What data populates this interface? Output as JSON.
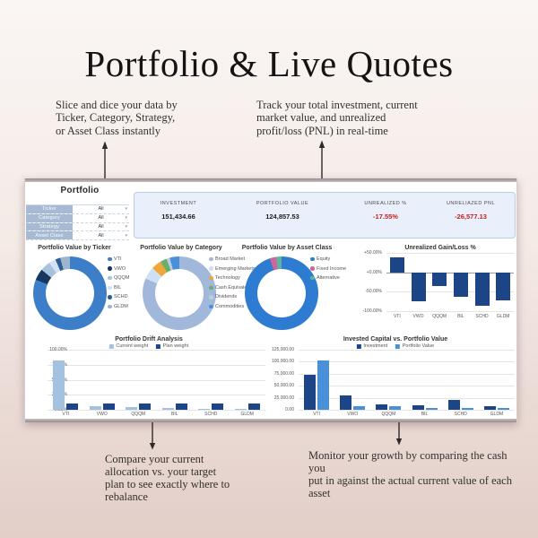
{
  "page": {
    "title": "Portfolio & Live Quotes"
  },
  "annotations": {
    "top_left": {
      "lines": [
        "Slice and dice your data by",
        "Ticker, Category, Strategy,",
        "or Asset Class instantly"
      ]
    },
    "top_right": {
      "lines": [
        "Track your total investment, current",
        "market value, and unrealized",
        "profit/loss (PNL) in real-time"
      ]
    },
    "bottom_left": {
      "lines": [
        "Compare your current",
        "allocation vs. your target",
        "plan to see exactly where to",
        "rebalance"
      ]
    },
    "bottom_right": {
      "lines": [
        "Monitor your growth by comparing the cash you",
        "put in against the actual current value of each asset"
      ]
    }
  },
  "dashboard": {
    "title": "Portfolio",
    "filters": [
      {
        "label": "Ticker",
        "value": "All"
      },
      {
        "label": "Category",
        "value": "All"
      },
      {
        "label": "Strategy",
        "value": "All"
      },
      {
        "label": "Asset Class",
        "value": "All"
      }
    ],
    "metrics": [
      {
        "label": "INVESTMENT",
        "value": "151,434.66",
        "negative": false
      },
      {
        "label": "PORTFOLIO VALUE",
        "value": "124,857.53",
        "negative": false
      },
      {
        "label": "UNREALIZED %",
        "value": "-17.55%",
        "negative": true
      },
      {
        "label": "UNRELIAZED PNL",
        "value": "-26,577.13",
        "negative": true
      }
    ]
  },
  "colors": {
    "navy": "#1c4587",
    "blue": "#4a90d9",
    "light_steel": "#a4c2e0",
    "negative_red": "#c01f1a",
    "filter_label_bg": "#a6bad3",
    "metrics_bg": "#eaf0fb"
  },
  "chart_data": [
    {
      "type": "pie",
      "title": "Portfolio Value by Ticker",
      "labels": [
        "VTI",
        "VWO",
        "QQQM",
        "BIL",
        "SCHD",
        "GLDM"
      ],
      "values": [
        81,
        5,
        4.5,
        3,
        2.2,
        4.3
      ],
      "colors": [
        "#3d7ec9",
        "#17375e",
        "#a9c2dc",
        "#d3e2f2",
        "#2f5e94",
        "#9db4cf"
      ],
      "legend_position": "right"
    },
    {
      "type": "pie",
      "title": "Portfolio Value by Category",
      "labels": [
        "Broad Market",
        "Emerging Markets",
        "Technology",
        "Cash Equivalent",
        "Dividends",
        "Commodities"
      ],
      "values": [
        81.5,
        5.5,
        4.5,
        2.8,
        1.5,
        4.2
      ],
      "colors": [
        "#a2b8da",
        "#cfe0f2",
        "#f0a73a",
        "#67b06b",
        "#bccde0",
        "#4a90d9"
      ],
      "legend_position": "right"
    },
    {
      "type": "pie",
      "title": "Portfolio Value by Asset Class",
      "labels": [
        "Equity",
        "Fixed Income",
        "Alternative"
      ],
      "values": [
        94.8,
        2.7,
        2.5
      ],
      "colors": [
        "#2e7cd1",
        "#cf6598",
        "#5fb3a1"
      ],
      "legend_position": "right"
    },
    {
      "type": "bar",
      "title": "Unrealized Gain/Loss %",
      "categories": [
        "VTI",
        "VWO",
        "QQQM",
        "BIL",
        "SCHD",
        "GLDM"
      ],
      "series": [
        {
          "name": "",
          "color": "#1c4587",
          "values": [
            38,
            -75,
            -36,
            -64,
            -86,
            -73
          ]
        }
      ],
      "ylim": [
        -100,
        50
      ],
      "grid": true,
      "legend": false,
      "yticks": [
        {
          "v": 50,
          "label": "+50.00%"
        },
        {
          "v": 0,
          "label": "+0.00%"
        },
        {
          "v": -50,
          "label": "-50.00%"
        },
        {
          "v": -100,
          "label": "-100.00%"
        }
      ]
    },
    {
      "type": "bar",
      "title": "Portfolio Drift Analysis",
      "categories": [
        "VTI",
        "VWO",
        "QQQM",
        "BIL",
        "SCHD",
        "GLDM"
      ],
      "series": [
        {
          "name": "Current weight",
          "color": "#a4c2e0",
          "values": [
            82,
            6,
            5,
            2.5,
            2,
            1.5
          ]
        },
        {
          "name": "Plan weight",
          "color": "#1c4587",
          "values": [
            11,
            11,
            11,
            11,
            11,
            11
          ]
        }
      ],
      "ylim": [
        0,
        100
      ],
      "grid": true,
      "legend": true,
      "legend_position": "top",
      "yticks": [
        {
          "v": 100,
          "label": "100.00%"
        },
        {
          "v": 75,
          "label": "75.00%"
        },
        {
          "v": 50,
          "label": "50.00%"
        },
        {
          "v": 25,
          "label": "25.00%"
        },
        {
          "v": 0,
          "label": "0.00%"
        }
      ]
    },
    {
      "type": "bar",
      "title": "Invested Capital vs. Portfolio Value",
      "categories": [
        "VTI",
        "VWO",
        "QQQM",
        "BIL",
        "SCHD",
        "GLDM"
      ],
      "series": [
        {
          "name": "Investment",
          "color": "#1c4587",
          "values": [
            72500,
            30000,
            12000,
            8500,
            21000,
            8000
          ]
        },
        {
          "name": "Portfolio Value",
          "color": "#4a90d9",
          "values": [
            102000,
            8000,
            7000,
            3500,
            3000,
            3000
          ]
        }
      ],
      "ylim": [
        0,
        125000
      ],
      "grid": true,
      "legend": true,
      "legend_position": "top",
      "yticks": [
        {
          "v": 125000,
          "label": "125,000.00"
        },
        {
          "v": 100000,
          "label": "100,000.00"
        },
        {
          "v": 75000,
          "label": "75,000.00"
        },
        {
          "v": 50000,
          "label": "50,000.00"
        },
        {
          "v": 25000,
          "label": "25,000.00"
        },
        {
          "v": 0,
          "label": "0.00"
        }
      ]
    }
  ]
}
